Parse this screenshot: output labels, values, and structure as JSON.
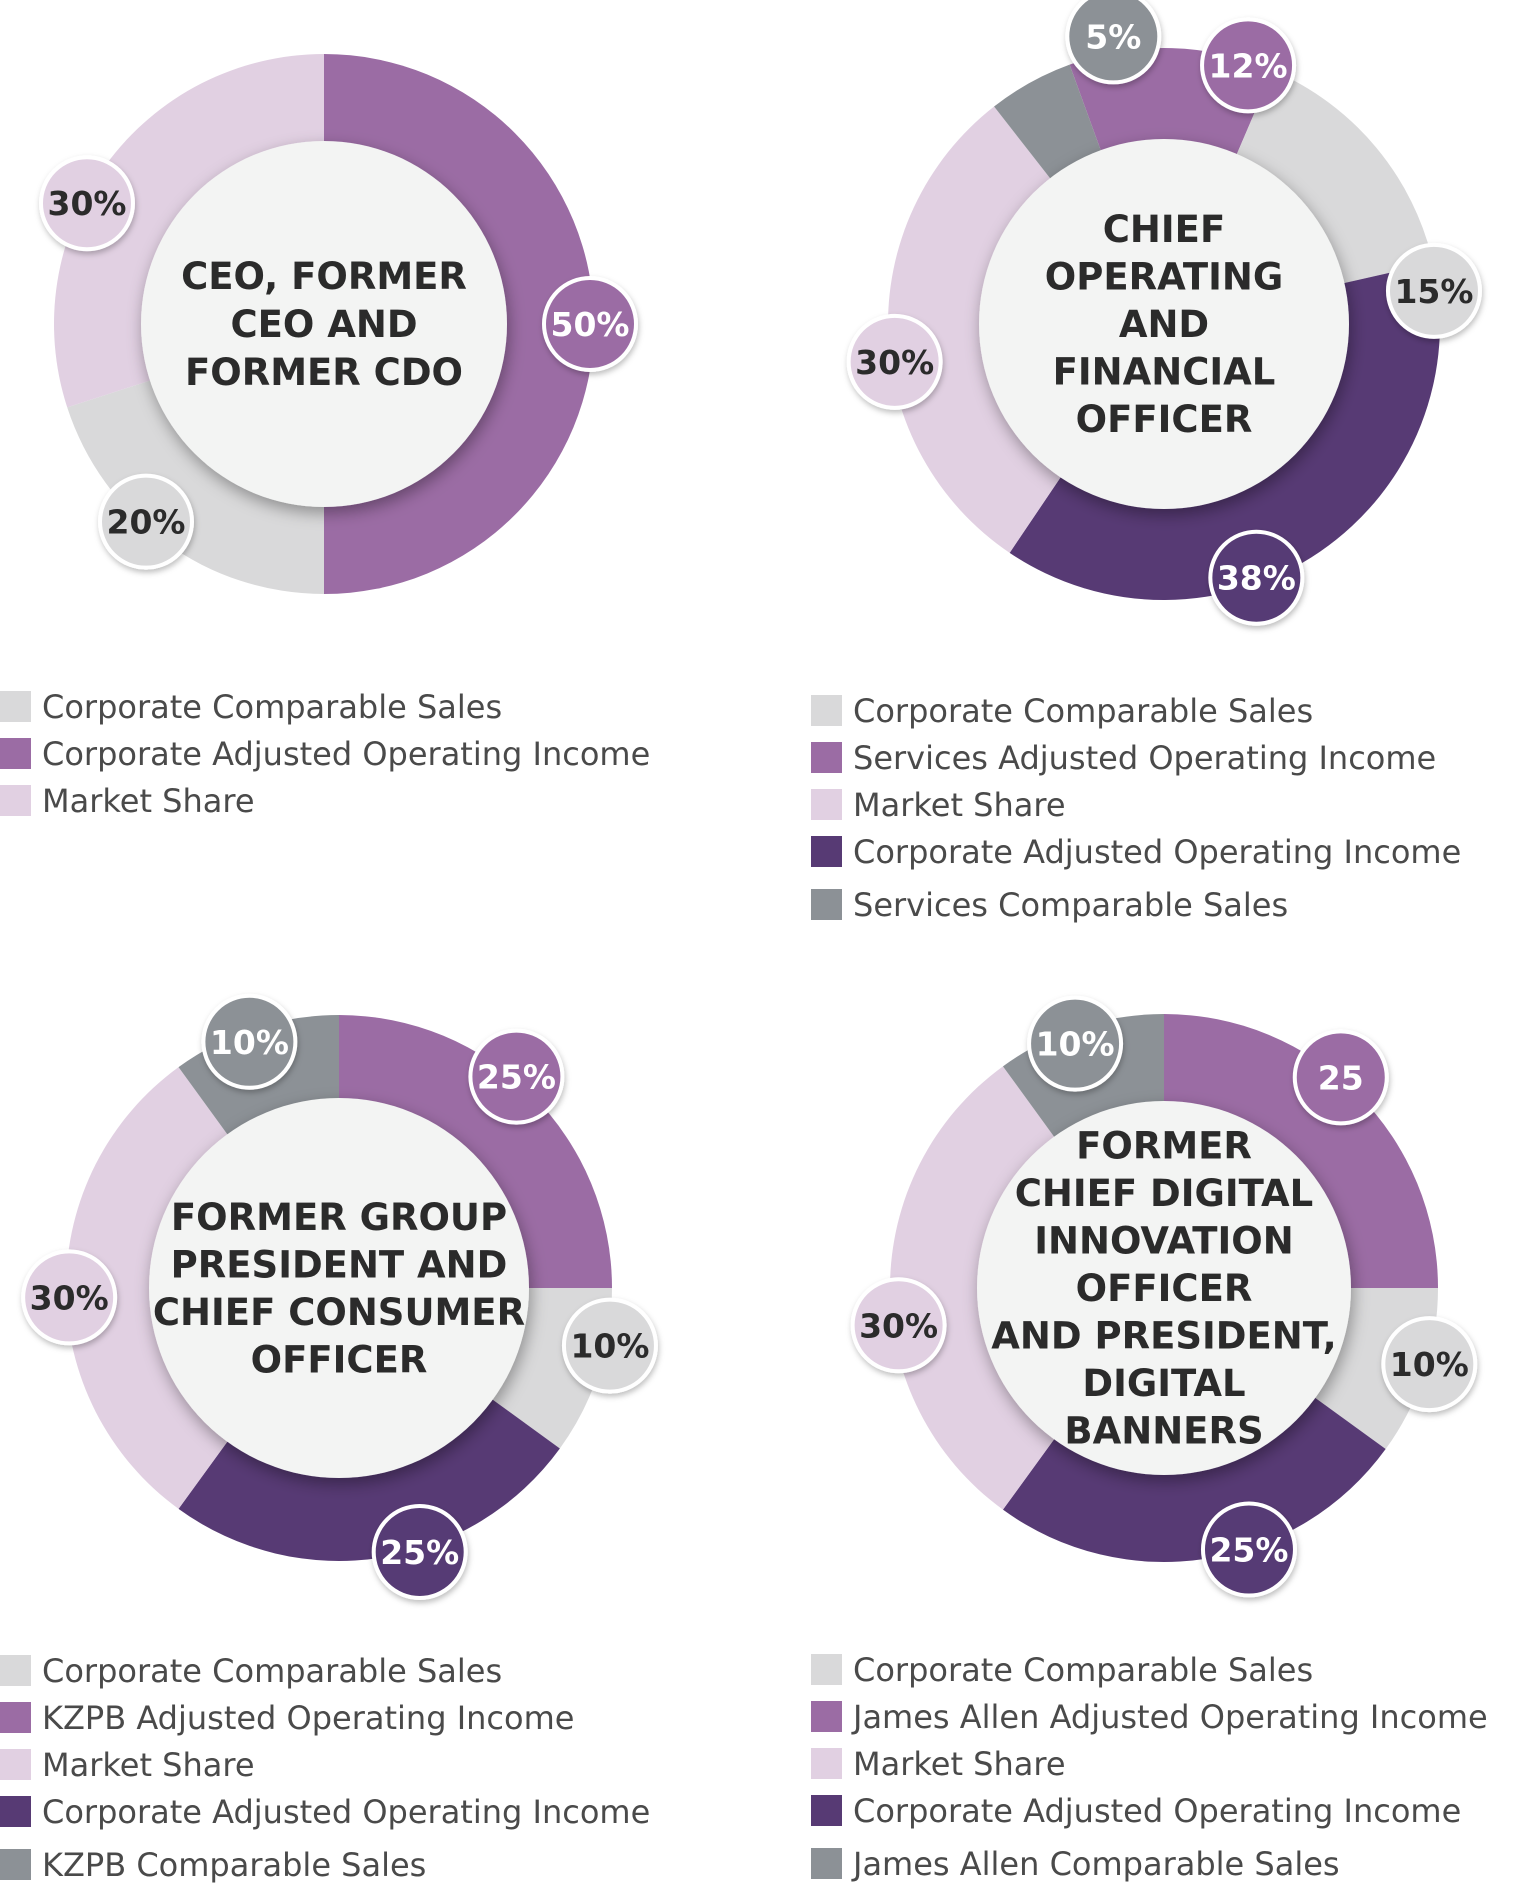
{
  "colors": {
    "corporate_comparable_sales": "#d9d9da",
    "adjusted_operating_income": "#9b6ca4",
    "market_share": "#e1d0e2",
    "corporate_adjusted_operating_income": "#573a74",
    "comparable_sales": "#8c9196",
    "center_fill": "#f3f4f3",
    "badge_border": "#ffffff",
    "dark_text": "#2b2b2b",
    "light_text": "#ffffff"
  },
  "chart_data": [
    {
      "type": "pie",
      "title": "CEO, FORMER CEO AND FORMER CDO",
      "title_lines": [
        "CEO, FORMER",
        "CEO AND",
        "FORMER CDO"
      ],
      "slices": [
        {
          "label": "Corporate Adjusted Operating Income",
          "value": 50,
          "display": "50%",
          "color_key": "adjusted_operating_income",
          "label_color": "light_text"
        },
        {
          "label": "Corporate Comparable Sales",
          "value": 20,
          "display": "20%",
          "color_key": "corporate_comparable_sales",
          "label_color": "dark_text"
        },
        {
          "label": "Market Share",
          "value": 30,
          "display": "30%",
          "color_key": "market_share",
          "label_color": "dark_text"
        }
      ],
      "legend": [
        {
          "label": "Corporate Comparable Sales",
          "color_key": "corporate_comparable_sales"
        },
        {
          "label": "Corporate Adjusted Operating Income",
          "color_key": "adjusted_operating_income"
        },
        {
          "label": "Market Share",
          "color_key": "market_share"
        }
      ]
    },
    {
      "type": "pie",
      "title": "CHIEF OPERATING AND FINANCIAL OFFICER",
      "title_lines": [
        "CHIEF",
        "OPERATING",
        "AND",
        "FINANCIAL",
        "OFFICER"
      ],
      "slices": [
        {
          "label": "Services Adjusted Operating Income",
          "value": 12,
          "display": "12%",
          "color_key": "adjusted_operating_income",
          "label_color": "light_text"
        },
        {
          "label": "Corporate Comparable Sales",
          "value": 15,
          "display": "15%",
          "color_key": "corporate_comparable_sales",
          "label_color": "dark_text"
        },
        {
          "label": "Corporate Adjusted Operating Income",
          "value": 38,
          "display": "38%",
          "color_key": "corporate_adjusted_operating_income",
          "label_color": "light_text"
        },
        {
          "label": "Market Share",
          "value": 30,
          "display": "30%",
          "color_key": "market_share",
          "label_color": "dark_text"
        },
        {
          "label": "Services Comparable Sales",
          "value": 5,
          "display": "5%",
          "color_key": "comparable_sales",
          "label_color": "light_text"
        }
      ],
      "legend": [
        {
          "label": "Corporate Comparable Sales",
          "color_key": "corporate_comparable_sales"
        },
        {
          "label": "Services Adjusted Operating Income",
          "color_key": "adjusted_operating_income"
        },
        {
          "label": "Market Share",
          "color_key": "market_share"
        },
        {
          "label": "Corporate Adjusted Operating Income",
          "color_key": "corporate_adjusted_operating_income"
        },
        {
          "label": "Services Comparable Sales",
          "color_key": "comparable_sales"
        }
      ]
    },
    {
      "type": "pie",
      "title": "FORMER GROUP PRESIDENT AND CHIEF CONSUMER OFFICER",
      "title_lines": [
        "FORMER GROUP",
        "PRESIDENT AND",
        "CHIEF CONSUMER",
        "OFFICER"
      ],
      "slices": [
        {
          "label": "KZPB Adjusted Operating Income",
          "value": 25,
          "display": "25%",
          "color_key": "adjusted_operating_income",
          "label_color": "light_text"
        },
        {
          "label": "Corporate Comparable Sales",
          "value": 10,
          "display": "10%",
          "color_key": "corporate_comparable_sales",
          "label_color": "dark_text"
        },
        {
          "label": "Corporate Adjusted Operating Income",
          "value": 25,
          "display": "25%",
          "color_key": "corporate_adjusted_operating_income",
          "label_color": "light_text"
        },
        {
          "label": "Market Share",
          "value": 30,
          "display": "30%",
          "color_key": "market_share",
          "label_color": "dark_text"
        },
        {
          "label": "KZPB Comparable Sales",
          "value": 10,
          "display": "10%",
          "color_key": "comparable_sales",
          "label_color": "light_text"
        }
      ],
      "legend": [
        {
          "label": "Corporate Comparable Sales",
          "color_key": "corporate_comparable_sales"
        },
        {
          "label": "KZPB Adjusted Operating Income",
          "color_key": "adjusted_operating_income"
        },
        {
          "label": "Market Share",
          "color_key": "market_share"
        },
        {
          "label": "Corporate Adjusted Operating Income",
          "color_key": "corporate_adjusted_operating_income"
        },
        {
          "label": "KZPB Comparable Sales",
          "color_key": "comparable_sales"
        }
      ]
    },
    {
      "type": "pie",
      "title": "FORMER CHIEF DIGITAL INNOVATION OFFICER AND PRESIDENT, DIGITAL BANNERS",
      "title_lines": [
        "FORMER",
        "CHIEF DIGITAL",
        "INNOVATION",
        "OFFICER",
        "AND PRESIDENT,",
        "DIGITAL",
        "BANNERS"
      ],
      "slices": [
        {
          "label": "James Allen Adjusted Operating Income",
          "value": 25,
          "display": "25",
          "color_key": "adjusted_operating_income",
          "label_color": "light_text"
        },
        {
          "label": "Corporate Comparable Sales",
          "value": 10,
          "display": "10%",
          "color_key": "corporate_comparable_sales",
          "label_color": "dark_text"
        },
        {
          "label": "Corporate Adjusted Operating Income",
          "value": 25,
          "display": "25%",
          "color_key": "corporate_adjusted_operating_income",
          "label_color": "light_text"
        },
        {
          "label": "Market Share",
          "value": 30,
          "display": "30%",
          "color_key": "market_share",
          "label_color": "dark_text"
        },
        {
          "label": "James Allen Comparable Sales",
          "value": 10,
          "display": "10%",
          "color_key": "comparable_sales",
          "label_color": "light_text"
        }
      ],
      "legend": [
        {
          "label": "Corporate Comparable Sales",
          "color_key": "corporate_comparable_sales"
        },
        {
          "label": "James Allen Adjusted Operating Income",
          "color_key": "adjusted_operating_income"
        },
        {
          "label": "Market Share",
          "color_key": "market_share"
        },
        {
          "label": "Corporate Adjusted Operating Income",
          "color_key": "corporate_adjusted_operating_income"
        },
        {
          "label": "James Allen Comparable Sales",
          "color_key": "comparable_sales"
        }
      ]
    }
  ]
}
